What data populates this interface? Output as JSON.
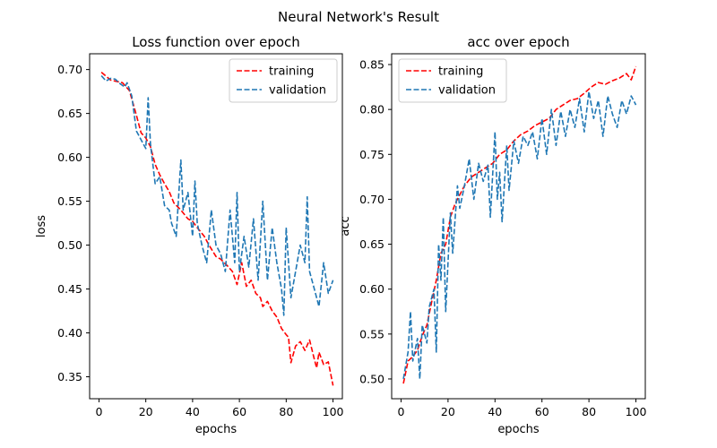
{
  "figure": {
    "suptitle": "Neural Network's Result"
  },
  "colors": {
    "training": "#ff0000",
    "validation": "#1f77b4"
  },
  "chart_data": [
    {
      "type": "line",
      "title": "Loss function over epoch",
      "xlabel": "epochs",
      "ylabel": "loss",
      "xlim": [
        -4,
        104
      ],
      "ylim": [
        0.325,
        0.718
      ],
      "xticks": [
        0,
        20,
        40,
        60,
        80,
        100
      ],
      "yticks": [
        0.35,
        0.4,
        0.45,
        0.5,
        0.55,
        0.6,
        0.65,
        0.7
      ],
      "ytick_labels": [
        "0.35",
        "0.40",
        "0.45",
        "0.50",
        "0.55",
        "0.60",
        "0.65",
        "0.70"
      ],
      "grid": false,
      "legend": "upper right",
      "series": [
        {
          "name": "training",
          "color": "#ff0000",
          "style": "dashed",
          "x": [
            1,
            5,
            10,
            13,
            16,
            18,
            20,
            22,
            24,
            26,
            28,
            30,
            32,
            35,
            38,
            40,
            42,
            45,
            47,
            50,
            52,
            55,
            57,
            59,
            61,
            63,
            65,
            67,
            69,
            70,
            72,
            74,
            76,
            78,
            80,
            81,
            82,
            84,
            86,
            88,
            90,
            92,
            93,
            94,
            96,
            98,
            100
          ],
          "y": [
            0.697,
            0.688,
            0.685,
            0.676,
            0.648,
            0.628,
            0.622,
            0.612,
            0.592,
            0.58,
            0.57,
            0.561,
            0.548,
            0.54,
            0.53,
            0.527,
            0.52,
            0.51,
            0.5,
            0.487,
            0.484,
            0.476,
            0.47,
            0.455,
            0.48,
            0.453,
            0.46,
            0.445,
            0.44,
            0.43,
            0.436,
            0.425,
            0.418,
            0.405,
            0.398,
            0.395,
            0.366,
            0.385,
            0.39,
            0.38,
            0.392,
            0.37,
            0.36,
            0.378,
            0.364,
            0.367,
            0.34
          ]
        },
        {
          "name": "validation",
          "color": "#1f77b4",
          "style": "dashed",
          "x": [
            1,
            3,
            5,
            7,
            9,
            11,
            12,
            14,
            16,
            18,
            20,
            21,
            22,
            24,
            26,
            28,
            30,
            31,
            33,
            35,
            36,
            38,
            40,
            41,
            42,
            44,
            46,
            48,
            50,
            52,
            54,
            56,
            58,
            59,
            60,
            62,
            64,
            66,
            68,
            70,
            72,
            74,
            76,
            78,
            79,
            80,
            82,
            84,
            86,
            88,
            89,
            90,
            92,
            94,
            96,
            98,
            100
          ],
          "y": [
            0.693,
            0.687,
            0.69,
            0.689,
            0.684,
            0.68,
            0.685,
            0.67,
            0.63,
            0.62,
            0.61,
            0.668,
            0.615,
            0.57,
            0.578,
            0.545,
            0.54,
            0.525,
            0.51,
            0.597,
            0.54,
            0.56,
            0.51,
            0.573,
            0.525,
            0.5,
            0.48,
            0.54,
            0.5,
            0.49,
            0.47,
            0.54,
            0.48,
            0.56,
            0.47,
            0.51,
            0.475,
            0.53,
            0.46,
            0.55,
            0.46,
            0.52,
            0.48,
            0.45,
            0.42,
            0.52,
            0.44,
            0.47,
            0.5,
            0.48,
            0.555,
            0.47,
            0.45,
            0.43,
            0.48,
            0.445,
            0.46
          ]
        }
      ]
    },
    {
      "type": "line",
      "title": "acc over epoch",
      "xlabel": "epochs",
      "ylabel": "acc",
      "xlim": [
        -4,
        104
      ],
      "ylim": [
        0.478,
        0.862
      ],
      "xticks": [
        0,
        20,
        40,
        60,
        80,
        100
      ],
      "yticks": [
        0.5,
        0.55,
        0.6,
        0.65,
        0.7,
        0.75,
        0.8,
        0.85
      ],
      "ytick_labels": [
        "0.50",
        "0.55",
        "0.60",
        "0.65",
        "0.70",
        "0.75",
        "0.80",
        "0.85"
      ],
      "grid": false,
      "legend": "upper left",
      "series": [
        {
          "name": "training",
          "color": "#ff0000",
          "style": "dashed",
          "x": [
            1,
            3,
            5,
            7,
            9,
            11,
            13,
            15,
            17,
            19,
            21,
            23,
            25,
            27,
            30,
            33,
            36,
            39,
            42,
            45,
            48,
            51,
            54,
            57,
            60,
            63,
            66,
            69,
            72,
            75,
            78,
            81,
            84,
            87,
            90,
            93,
            96,
            98,
            100
          ],
          "y": [
            0.495,
            0.52,
            0.525,
            0.532,
            0.548,
            0.56,
            0.585,
            0.61,
            0.64,
            0.65,
            0.68,
            0.695,
            0.705,
            0.715,
            0.725,
            0.73,
            0.735,
            0.74,
            0.75,
            0.755,
            0.765,
            0.772,
            0.776,
            0.782,
            0.786,
            0.79,
            0.8,
            0.805,
            0.81,
            0.812,
            0.818,
            0.825,
            0.83,
            0.828,
            0.832,
            0.835,
            0.84,
            0.833,
            0.848
          ]
        },
        {
          "name": "validation",
          "color": "#1f77b4",
          "style": "dashed",
          "x": [
            1,
            3,
            4,
            5,
            7,
            8,
            9,
            11,
            12,
            14,
            15,
            16,
            17,
            18,
            19,
            21,
            22,
            24,
            25,
            27,
            29,
            31,
            33,
            35,
            37,
            38,
            40,
            41,
            42,
            43,
            45,
            46,
            48,
            50,
            52,
            54,
            56,
            58,
            60,
            62,
            64,
            66,
            68,
            70,
            72,
            74,
            76,
            78,
            80,
            82,
            84,
            86,
            88,
            90,
            92,
            94,
            96,
            98,
            100
          ],
          "y": [
            0.5,
            0.53,
            0.575,
            0.52,
            0.545,
            0.5,
            0.56,
            0.54,
            0.58,
            0.6,
            0.53,
            0.65,
            0.61,
            0.68,
            0.575,
            0.685,
            0.64,
            0.715,
            0.69,
            0.715,
            0.745,
            0.7,
            0.74,
            0.72,
            0.738,
            0.68,
            0.775,
            0.7,
            0.73,
            0.675,
            0.76,
            0.71,
            0.765,
            0.74,
            0.77,
            0.76,
            0.775,
            0.745,
            0.79,
            0.75,
            0.8,
            0.76,
            0.798,
            0.77,
            0.8,
            0.78,
            0.812,
            0.775,
            0.82,
            0.79,
            0.81,
            0.77,
            0.815,
            0.795,
            0.78,
            0.81,
            0.795,
            0.815,
            0.805
          ]
        }
      ]
    }
  ]
}
